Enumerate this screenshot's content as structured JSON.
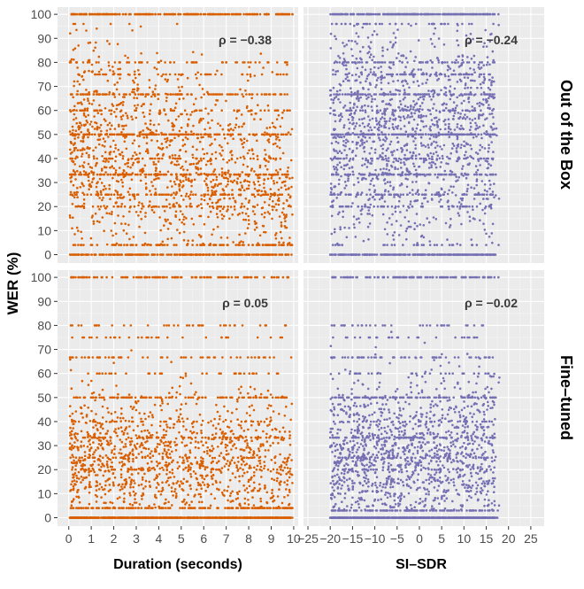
{
  "chart_data": {
    "type": "scatter",
    "layout": "facet_grid",
    "ylabel": "WER (%)",
    "rows": [
      "Out of the Box",
      "Fine–tuned"
    ],
    "columns": [
      {
        "xlabel": "Duration (seconds)",
        "xlim": [
          -0.5,
          10.2
        ],
        "xticks": [
          0,
          1,
          2,
          3,
          4,
          5,
          6,
          7,
          8,
          9,
          10
        ],
        "color": "#d95f02"
      },
      {
        "xlabel": "SI–SDR",
        "xlim": [
          -26,
          28
        ],
        "xticks": [
          -25,
          -20,
          -15,
          -10,
          -5,
          0,
          5,
          10,
          15,
          20,
          25
        ],
        "color": "#7570b3"
      }
    ],
    "ylim": [
      -3.5,
      103
    ],
    "yticks": [
      0,
      10,
      20,
      30,
      40,
      50,
      60,
      70,
      80,
      90,
      100
    ],
    "panels": [
      {
        "row": 0,
        "col": 0,
        "rho_label": "ρ = −0.38",
        "rho": -0.38
      },
      {
        "row": 0,
        "col": 1,
        "rho_label": "ρ = −0.24",
        "rho": -0.24
      },
      {
        "row": 1,
        "col": 0,
        "rho_label": "ρ =  0.05",
        "rho": 0.05
      },
      {
        "row": 1,
        "col": 1,
        "rho_label": "ρ = −0.02",
        "rho": -0.02
      }
    ],
    "wer_bands": [
      0,
      100,
      50,
      33.3,
      66.7,
      25,
      75,
      20,
      40,
      60,
      80
    ]
  }
}
